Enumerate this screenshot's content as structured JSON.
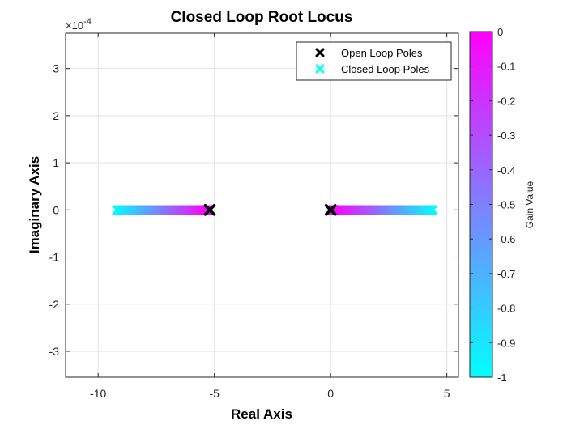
{
  "chart_data": {
    "type": "scatter",
    "title": "Closed Loop Root Locus",
    "xlabel": "Real Axis",
    "ylabel": "Imaginary Axis",
    "y_exponent_label": "×10",
    "y_exponent_power": "-4",
    "xlim": [
      -11.4,
      5.5
    ],
    "ylim": [
      -3.55,
      3.75
    ],
    "x_ticks": [
      -10,
      -5,
      0,
      5
    ],
    "x_tick_labels": [
      "-10",
      "-5",
      "0",
      "5"
    ],
    "y_ticks": [
      -3,
      -2,
      -1,
      0,
      1,
      2,
      3
    ],
    "y_tick_labels": [
      "-3",
      "-2",
      "-1",
      "0",
      "1",
      "2",
      "3"
    ],
    "grid": true,
    "legend_position": "top-right",
    "legend": [
      {
        "label": "Open Loop Poles",
        "color": "#000000",
        "marker": "x"
      },
      {
        "label": "Closed Loop Poles",
        "color": "#00ffff",
        "marker": "x"
      }
    ],
    "open_loop_poles": [
      {
        "x": -5.2,
        "y": 0
      },
      {
        "x": 0,
        "y": 0
      }
    ],
    "closed_loop_branches": [
      {
        "x_start": -5.2,
        "x_end": -9.2,
        "y": 0,
        "gain_start": 0,
        "gain_end": -1
      },
      {
        "x_start": 0,
        "x_end": 4.4,
        "y": 0,
        "gain_start": 0,
        "gain_end": -1
      }
    ],
    "colorbar": {
      "label": "Gain Value",
      "range": [
        -1,
        0
      ],
      "ticks": [
        0,
        -0.1,
        -0.2,
        -0.3,
        -0.4,
        -0.5,
        -0.6,
        -0.7,
        -0.8,
        -0.9,
        -1
      ],
      "tick_labels": [
        "0",
        "-0.1",
        "-0.2",
        "-0.3",
        "-0.4",
        "-0.5",
        "-0.6",
        "-0.7",
        "-0.8",
        "-0.9",
        "-1"
      ],
      "color_low": "#00ffff",
      "color_high": "#ff00ff"
    }
  }
}
